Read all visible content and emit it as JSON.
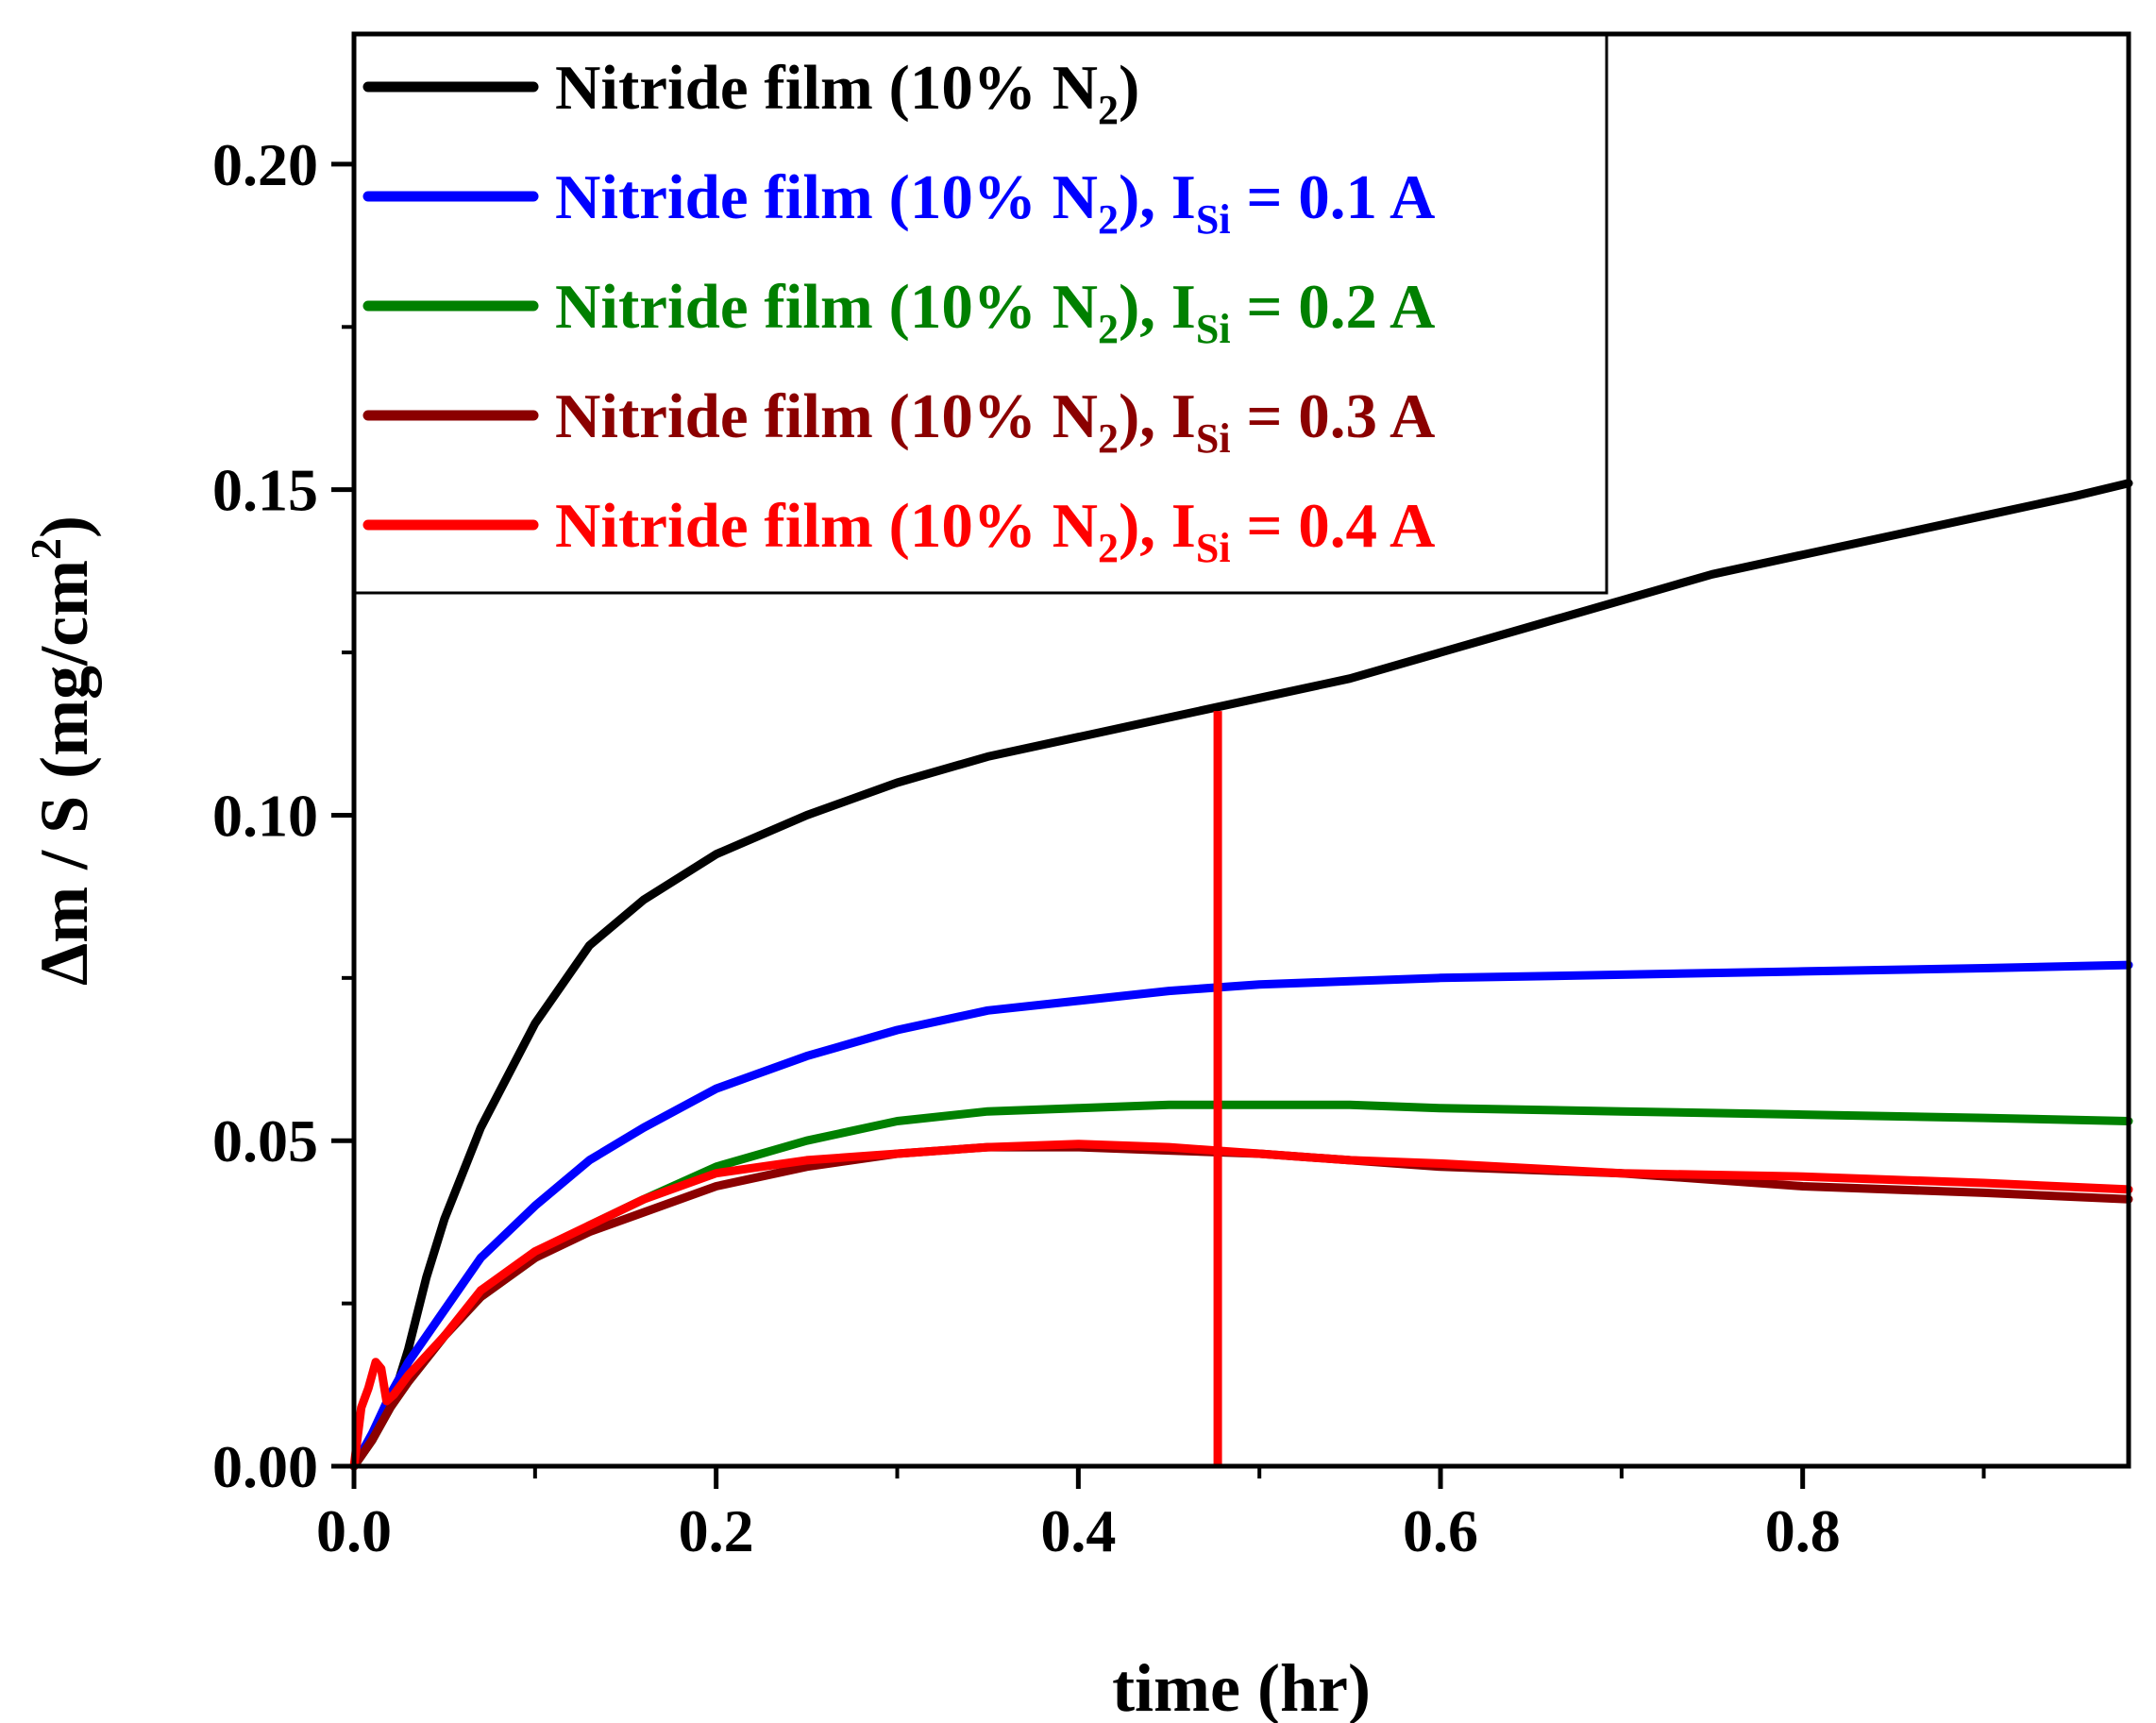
{
  "chart_data": {
    "type": "line",
    "title": "",
    "xlabel": "time (hr)",
    "ylabel": {
      "prefix": "Δm / S (mg/cm",
      "superscript": "2",
      "suffix": ")"
    },
    "xlim": [
      0.0,
      0.98
    ],
    "ylim": [
      0.0,
      0.22
    ],
    "xticks": [
      {
        "value": 0.0,
        "label": "0.0"
      },
      {
        "value": 0.2,
        "label": "0.2"
      },
      {
        "value": 0.4,
        "label": "0.4"
      },
      {
        "value": 0.6,
        "label": "0.6"
      },
      {
        "value": 0.8,
        "label": "0.8"
      }
    ],
    "xminor": [
      0.1,
      0.3,
      0.5,
      0.7,
      0.9
    ],
    "yticks": [
      {
        "value": 0.0,
        "label": "0.00"
      },
      {
        "value": 0.05,
        "label": "0.05"
      },
      {
        "value": 0.1,
        "label": "0.10"
      },
      {
        "value": 0.15,
        "label": "0.15"
      },
      {
        "value": 0.2,
        "label": "0.20"
      }
    ],
    "yminor": [
      0.025,
      0.075,
      0.125,
      0.175
    ],
    "grid": false,
    "legend_position": "top-left",
    "series": [
      {
        "name": "Nitride film (10% N2)",
        "label_parts": {
          "main": "Nitride film (10% N",
          "sub": "2",
          "tail": ")",
          "i": "",
          "i_sub": "",
          "i_value": ""
        },
        "color": "#000000",
        "x": [
          0.0,
          0.01,
          0.02,
          0.03,
          0.04,
          0.05,
          0.07,
          0.1,
          0.13,
          0.16,
          0.2,
          0.25,
          0.3,
          0.35,
          0.4,
          0.45,
          0.5,
          0.55,
          0.6,
          0.65,
          0.7,
          0.75,
          0.8,
          0.85,
          0.9,
          0.95,
          0.98
        ],
        "y": [
          0.0,
          0.004,
          0.009,
          0.018,
          0.029,
          0.038,
          0.052,
          0.068,
          0.08,
          0.087,
          0.094,
          0.1,
          0.105,
          0.109,
          0.112,
          0.115,
          0.118,
          0.121,
          0.125,
          0.129,
          0.133,
          0.137,
          0.14,
          0.143,
          0.146,
          0.149,
          0.151
        ]
      },
      {
        "name": "Nitride film (10% N2), ISi = 0.1 A",
        "label_parts": {
          "main": "Nitride film (10% N",
          "sub": "2",
          "tail": "), ",
          "i": "I",
          "i_sub": "Si",
          "i_value": " = 0.1 A"
        },
        "color": "#0000ff",
        "x": [
          0.0,
          0.01,
          0.02,
          0.03,
          0.05,
          0.07,
          0.1,
          0.13,
          0.16,
          0.2,
          0.25,
          0.3,
          0.35,
          0.4,
          0.45,
          0.5,
          0.55,
          0.6,
          0.7,
          0.8,
          0.9,
          0.98
        ],
        "y": [
          0.0,
          0.005,
          0.011,
          0.016,
          0.024,
          0.032,
          0.04,
          0.047,
          0.052,
          0.058,
          0.063,
          0.067,
          0.07,
          0.0715,
          0.073,
          0.074,
          0.0745,
          0.075,
          0.0755,
          0.076,
          0.0765,
          0.077
        ]
      },
      {
        "name": "Nitride film (10% N2), ISi = 0.2 A",
        "label_parts": {
          "main": "Nitride film (10% N",
          "sub": "2",
          "tail": "), ",
          "i": "I",
          "i_sub": "Si",
          "i_value": " = 0.2 A"
        },
        "color": "#008000",
        "x": [
          0.0,
          0.01,
          0.02,
          0.03,
          0.05,
          0.07,
          0.1,
          0.13,
          0.16,
          0.2,
          0.25,
          0.3,
          0.35,
          0.4,
          0.45,
          0.5,
          0.55,
          0.6,
          0.7,
          0.8,
          0.9,
          0.98
        ],
        "y": [
          0.0,
          0.004,
          0.009,
          0.013,
          0.02,
          0.026,
          0.032,
          0.037,
          0.041,
          0.046,
          0.05,
          0.053,
          0.0545,
          0.055,
          0.0555,
          0.0555,
          0.0555,
          0.055,
          0.0545,
          0.054,
          0.0535,
          0.053
        ]
      },
      {
        "name": "Nitride film (10% N2), ISi = 0.3 A",
        "label_parts": {
          "main": "Nitride film (10% N",
          "sub": "2",
          "tail": "), ",
          "i": "I",
          "i_sub": "Si",
          "i_value": " = 0.3 A"
        },
        "color": "#8b0000",
        "x": [
          0.0,
          0.01,
          0.02,
          0.03,
          0.05,
          0.07,
          0.1,
          0.13,
          0.16,
          0.2,
          0.25,
          0.3,
          0.35,
          0.4,
          0.45,
          0.5,
          0.55,
          0.6,
          0.7,
          0.8,
          0.9,
          0.98
        ],
        "y": [
          0.0,
          0.004,
          0.009,
          0.013,
          0.02,
          0.026,
          0.032,
          0.036,
          0.039,
          0.043,
          0.046,
          0.048,
          0.049,
          0.049,
          0.0485,
          0.048,
          0.047,
          0.046,
          0.045,
          0.043,
          0.042,
          0.041
        ]
      },
      {
        "name": "Nitride film (10% N2), ISi = 0.4 A",
        "label_parts": {
          "main": "Nitride film (10% N",
          "sub": "2",
          "tail": "), ",
          "i": "I",
          "i_sub": "Si",
          "i_value": " = 0.4 A"
        },
        "color": "#ff0000",
        "x": [
          0.0,
          0.004,
          0.008,
          0.012,
          0.015,
          0.018,
          0.022,
          0.03,
          0.05,
          0.07,
          0.1,
          0.13,
          0.16,
          0.2,
          0.25,
          0.3,
          0.35,
          0.4,
          0.45,
          0.5,
          0.55,
          0.6,
          0.7,
          0.8,
          0.9,
          0.98
        ],
        "y": [
          0.0,
          0.009,
          0.012,
          0.016,
          0.015,
          0.01,
          0.011,
          0.014,
          0.02,
          0.027,
          0.033,
          0.037,
          0.041,
          0.045,
          0.047,
          0.048,
          0.049,
          0.0495,
          0.049,
          0.048,
          0.047,
          0.0465,
          0.045,
          0.0445,
          0.0435,
          0.0425
        ]
      }
    ],
    "annotations": [
      {
        "type": "vertical-line",
        "x": 0.477,
        "y_from": 0.0,
        "y_to": 0.116,
        "color": "#ff0000"
      }
    ]
  }
}
